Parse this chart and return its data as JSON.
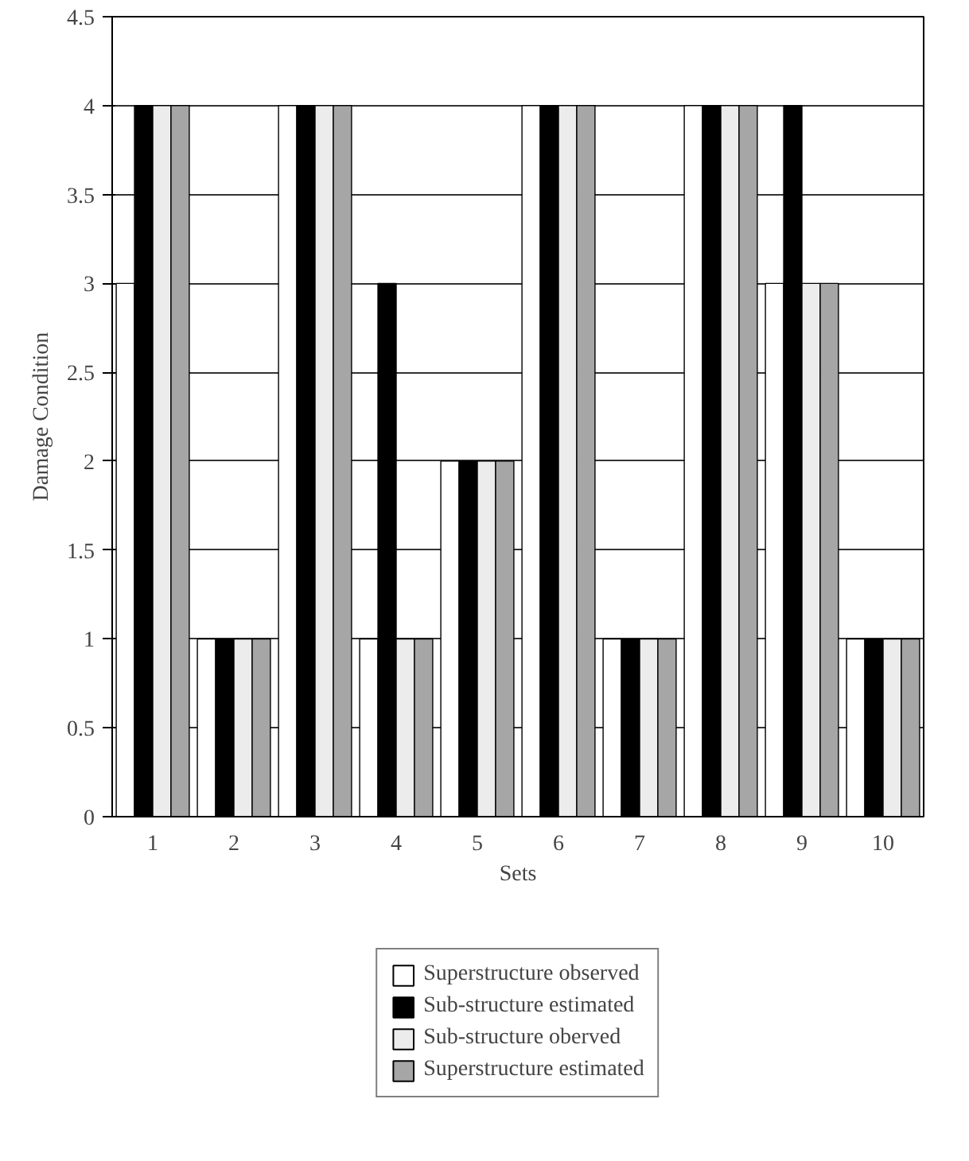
{
  "chart_data": {
    "type": "bar",
    "xlabel": "Sets",
    "ylabel": "Damage Condition",
    "categories": [
      "1",
      "2",
      "3",
      "4",
      "5",
      "6",
      "7",
      "8",
      "9",
      "10"
    ],
    "series": [
      {
        "name": "Superstructure observed",
        "color": "#ffffff",
        "values": [
          3,
          1,
          4,
          1,
          2,
          4,
          1,
          4,
          3,
          1
        ]
      },
      {
        "name": "Sub-structure estimated",
        "color": "#000000",
        "values": [
          4,
          1,
          4,
          3,
          2,
          4,
          1,
          4,
          4,
          1
        ]
      },
      {
        "name": "Sub-structure oberved",
        "color": "#ececec",
        "values": [
          4,
          1,
          4,
          1,
          2,
          4,
          1,
          4,
          3,
          1
        ]
      },
      {
        "name": "Superstructure estimated",
        "color": "#a6a6a6",
        "values": [
          4,
          1,
          4,
          1,
          2,
          4,
          1,
          4,
          3,
          1
        ]
      }
    ],
    "ylim": [
      0,
      4.5
    ],
    "yticks": [
      0,
      0.5,
      1,
      1.5,
      2,
      2.5,
      3,
      3.5,
      4,
      4.5
    ],
    "grid": "y",
    "legend": "bottom"
  }
}
